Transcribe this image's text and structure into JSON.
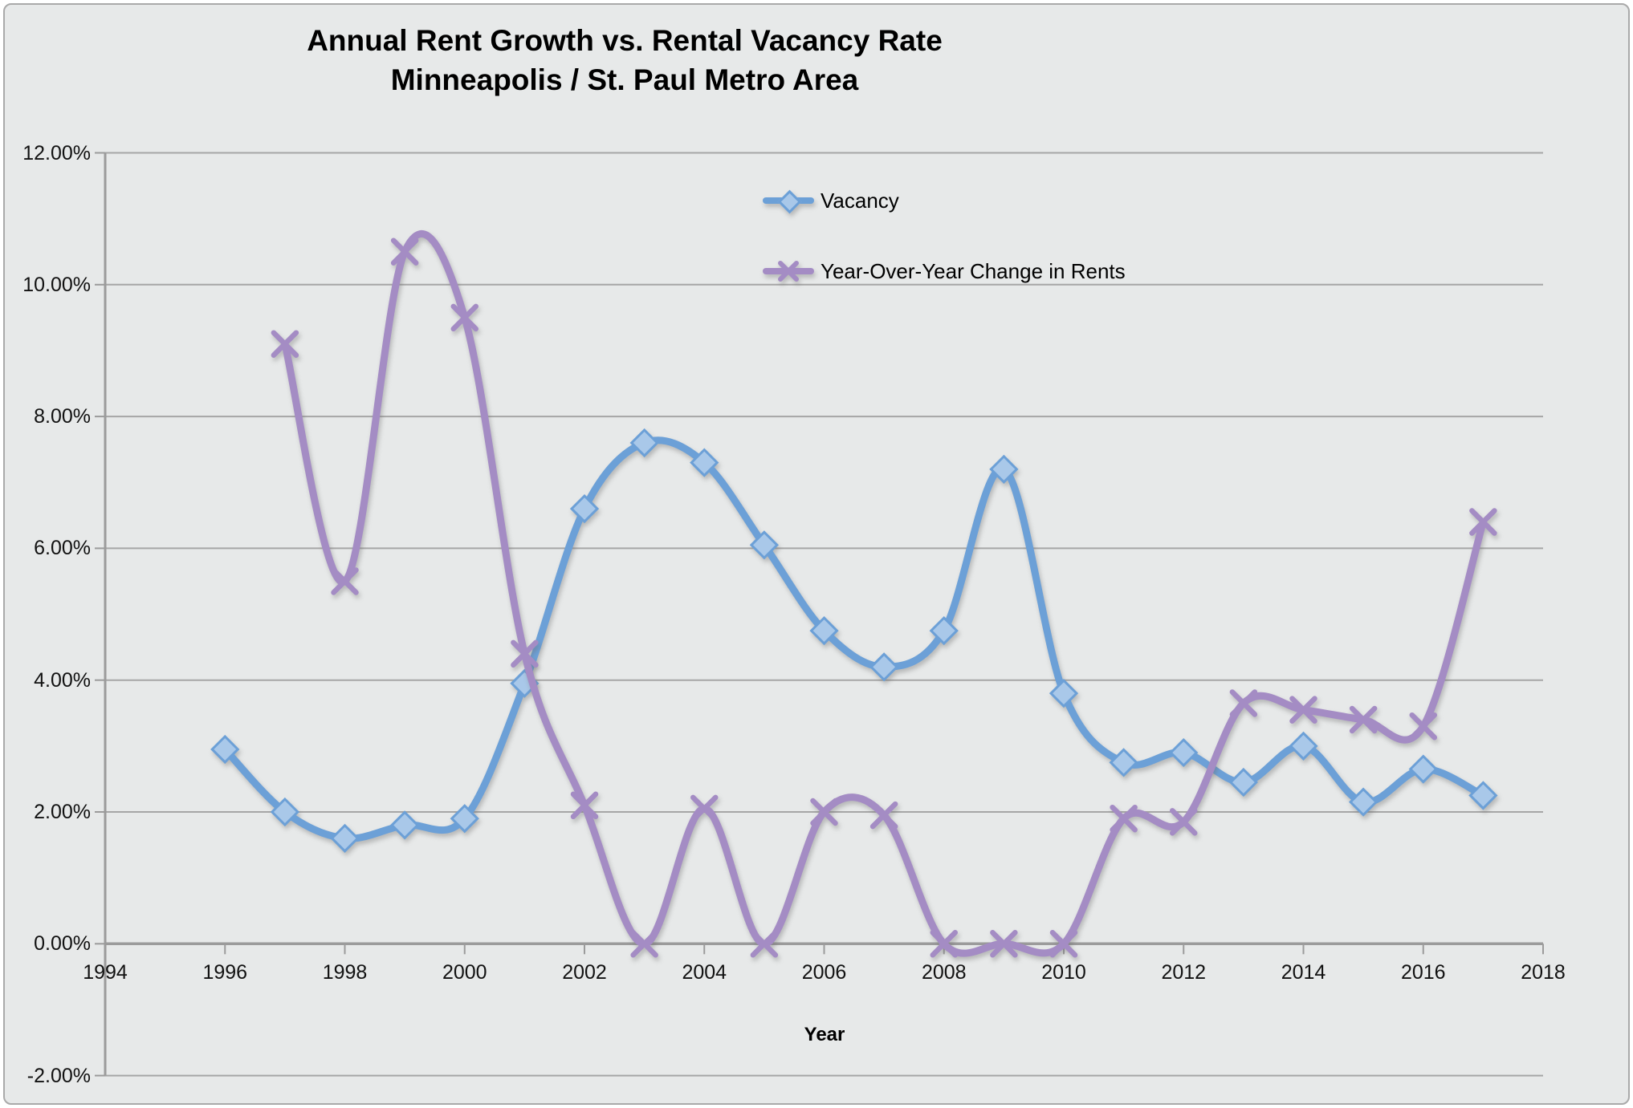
{
  "window": {
    "background": "#e7e9e9",
    "frame_border_color": "#a9a9a9"
  },
  "title": {
    "line1": "Annual Rent Growth vs. Rental Vacancy Rate",
    "line2": "Minneapolis / St. Paul Metro Area"
  },
  "legend": {
    "items": [
      {
        "label": "Vacancy",
        "marker": "diamond",
        "color": "#6ca0d7",
        "marker_fill": "#a9c8e9"
      },
      {
        "label": "Year-Over-Year Change in Rents",
        "marker": "x",
        "color": "#a48cc4"
      }
    ]
  },
  "axes": {
    "x_title": "Year",
    "x_tick_labels": [
      "1994",
      "1996",
      "1998",
      "2000",
      "2002",
      "2004",
      "2006",
      "2008",
      "2010",
      "2012",
      "2014",
      "2016",
      "2018"
    ],
    "y_tick_labels": [
      "12.00%",
      "10.00%",
      "8.00%",
      "6.00%",
      "4.00%",
      "2.00%",
      "0.00%",
      "-2.00%"
    ],
    "y_tick_values": [
      12,
      10,
      8,
      6,
      4,
      2,
      0,
      -2
    ],
    "grid_color": "#a6a6a6",
    "axis_color": "#9b9b9b",
    "label_color": "#111111"
  },
  "chart_data": {
    "type": "line",
    "title": "Annual Rent Growth vs. Rental Vacancy Rate — Minneapolis / St. Paul Metro Area",
    "xlabel": "Year",
    "ylabel": "",
    "xlim": [
      1994,
      2018
    ],
    "ylim": [
      -2,
      12
    ],
    "grid": true,
    "smooth": true,
    "legend_position": "inside-top-center",
    "series": [
      {
        "name": "Vacancy",
        "color": "#6ca0d7",
        "marker": "diamond",
        "x": [
          1996,
          1997,
          1998,
          1999,
          2000,
          2001,
          2002,
          2003,
          2004,
          2005,
          2006,
          2007,
          2008,
          2009,
          2010,
          2011,
          2012,
          2013,
          2014,
          2015,
          2016,
          2017
        ],
        "values": [
          2.95,
          2.0,
          1.6,
          1.8,
          1.9,
          3.95,
          6.6,
          7.6,
          7.3,
          6.05,
          4.75,
          4.2,
          4.75,
          7.2,
          3.8,
          2.75,
          2.9,
          2.45,
          3.0,
          2.15,
          2.65,
          2.25
        ]
      },
      {
        "name": "Year-Over-Year Change in Rents",
        "color": "#a48cc4",
        "marker": "x",
        "x": [
          1997,
          1998,
          1999,
          2000,
          2001,
          2002,
          2003,
          2004,
          2005,
          2006,
          2007,
          2008,
          2009,
          2010,
          2011,
          2012,
          2013,
          2014,
          2015,
          2016,
          2017
        ],
        "values": [
          9.1,
          5.5,
          10.5,
          9.5,
          4.4,
          2.1,
          0.0,
          2.05,
          0.0,
          2.0,
          1.95,
          0.0,
          0.0,
          0.0,
          1.9,
          1.85,
          3.65,
          3.55,
          3.4,
          3.3,
          6.4
        ]
      }
    ]
  }
}
